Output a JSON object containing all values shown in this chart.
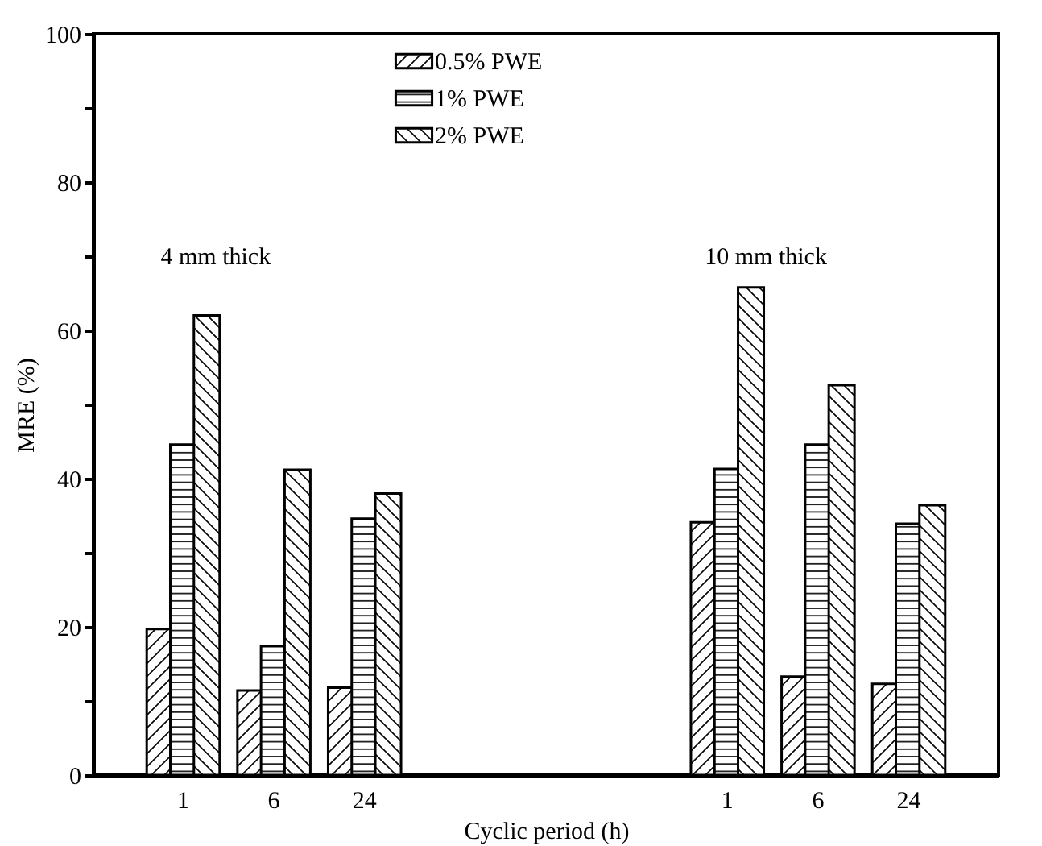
{
  "chart_data": {
    "type": "bar",
    "xlabel": "Cyclic period (h)",
    "ylabel": "MRE (%)",
    "categories": [
      "1",
      "6",
      "24",
      null,
      null,
      null,
      "1",
      "6",
      "24"
    ],
    "series": [
      {
        "name": "0.5% PWE",
        "color": "#000000",
        "values": [
          19.7,
          11.4,
          11.8,
          null,
          null,
          null,
          34.1,
          13.3,
          12.3
        ]
      },
      {
        "name": "1% PWE",
        "color": "#000000",
        "values": [
          44.6,
          17.4,
          34.6,
          null,
          null,
          null,
          41.3,
          44.6,
          33.9
        ]
      },
      {
        "name": "2% PWE",
        "color": "#000000",
        "values": [
          62.0,
          41.2,
          38.0,
          null,
          null,
          null,
          65.8,
          52.6,
          36.4
        ]
      }
    ],
    "ylim": [
      0,
      100
    ],
    "yticks": [
      0,
      {
        "value": 10,
        "label": null
      },
      20,
      {
        "value": 30,
        "label": null
      },
      40,
      {
        "value": 50,
        "label": null
      },
      60,
      {
        "value": 70,
        "label": null
      },
      80,
      {
        "value": 90,
        "label": null
      },
      100
    ],
    "annotations": [
      "4 mm thick",
      "10 mm thick"
    ],
    "legend": "top"
  }
}
